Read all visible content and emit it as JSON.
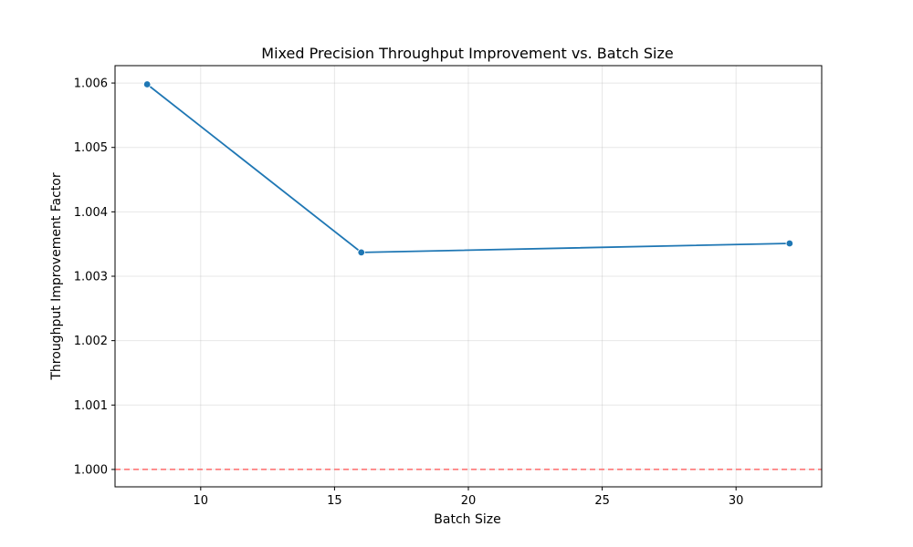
{
  "chart_data": {
    "type": "line",
    "title": "Mixed Precision Throughput Improvement vs. Batch Size",
    "xlabel": "Batch Size",
    "ylabel": "Throughput Improvement Factor",
    "xlim": [
      6.8,
      33.2
    ],
    "ylim": [
      0.99973,
      1.00627
    ],
    "x_ticks": [
      10,
      15,
      20,
      25,
      30
    ],
    "x_tick_labels": [
      "10",
      "15",
      "20",
      "25",
      "30"
    ],
    "y_ticks": [
      1.0,
      1.001,
      1.002,
      1.003,
      1.004,
      1.005,
      1.006
    ],
    "y_tick_labels": [
      "1.000",
      "1.001",
      "1.002",
      "1.003",
      "1.004",
      "1.005",
      "1.006"
    ],
    "grid": true,
    "series": [
      {
        "color": "#1f77b4",
        "marker": "circle",
        "x": [
          8,
          16,
          32
        ],
        "y": [
          1.00598,
          1.00337,
          1.00351
        ]
      }
    ],
    "reference_line": {
      "y": 1.0,
      "color": "#ff6b6b",
      "style": "dashed"
    }
  }
}
